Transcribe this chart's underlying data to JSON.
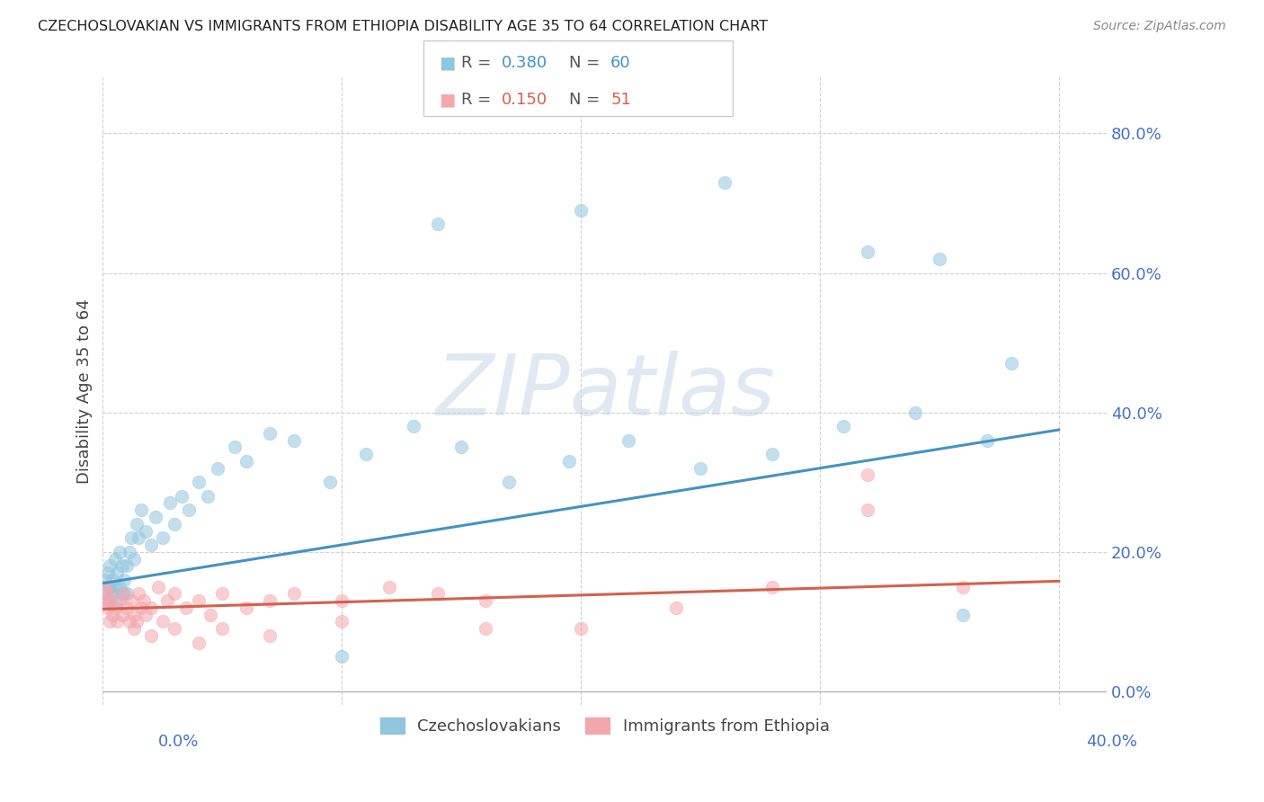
{
  "title": "CZECHOSLOVAKIAN VS IMMIGRANTS FROM ETHIOPIA DISABILITY AGE 35 TO 64 CORRELATION CHART",
  "source": "Source: ZipAtlas.com",
  "ylabel": "Disability Age 35 to 64",
  "legend_label1": "Czechoslovakians",
  "legend_label2": "Immigrants from Ethiopia",
  "R1": "0.380",
  "N1": "60",
  "R2": "0.150",
  "N2": "51",
  "color1": "#92c5de",
  "color2": "#f4a6ad",
  "line_color1": "#4393c3",
  "line_color2": "#d6604d",
  "background": "#ffffff",
  "watermark": "ZIPatlas",
  "xlim": [
    0.0,
    0.42
  ],
  "ylim": [
    -0.02,
    0.88
  ],
  "ytick_vals": [
    0.0,
    0.2,
    0.4,
    0.6,
    0.8
  ],
  "xtick_bottom_labels": [
    "0.0%",
    "40.0%"
  ],
  "xtick_bottom_vals": [
    0.0,
    0.4
  ],
  "ytick_right_labels": [
    "0.0%",
    "20.0%",
    "40.0%",
    "60.0%",
    "80.0%"
  ],
  "grid_ytick_vals": [
    0.0,
    0.2,
    0.4,
    0.6,
    0.8
  ],
  "grid_xtick_vals": [
    0.0,
    0.1,
    0.2,
    0.3,
    0.4
  ],
  "cz_x": [
    0.001,
    0.001,
    0.002,
    0.002,
    0.003,
    0.003,
    0.004,
    0.004,
    0.005,
    0.005,
    0.006,
    0.006,
    0.007,
    0.007,
    0.008,
    0.008,
    0.009,
    0.01,
    0.01,
    0.011,
    0.012,
    0.013,
    0.014,
    0.015,
    0.016,
    0.018,
    0.02,
    0.022,
    0.025,
    0.028,
    0.03,
    0.033,
    0.036,
    0.04,
    0.044,
    0.048,
    0.055,
    0.06,
    0.07,
    0.08,
    0.095,
    0.11,
    0.13,
    0.15,
    0.17,
    0.195,
    0.22,
    0.25,
    0.28,
    0.31,
    0.34,
    0.37,
    0.2,
    0.26,
    0.32,
    0.35,
    0.38,
    0.14,
    0.1,
    0.36
  ],
  "cz_y": [
    0.14,
    0.16,
    0.13,
    0.17,
    0.15,
    0.18,
    0.14,
    0.16,
    0.15,
    0.19,
    0.13,
    0.17,
    0.15,
    0.2,
    0.14,
    0.18,
    0.16,
    0.14,
    0.18,
    0.2,
    0.22,
    0.19,
    0.24,
    0.22,
    0.26,
    0.23,
    0.21,
    0.25,
    0.22,
    0.27,
    0.24,
    0.28,
    0.26,
    0.3,
    0.28,
    0.32,
    0.35,
    0.33,
    0.37,
    0.36,
    0.3,
    0.34,
    0.38,
    0.35,
    0.3,
    0.33,
    0.36,
    0.32,
    0.34,
    0.38,
    0.4,
    0.36,
    0.69,
    0.73,
    0.63,
    0.62,
    0.47,
    0.67,
    0.05,
    0.11
  ],
  "eth_x": [
    0.001,
    0.001,
    0.002,
    0.002,
    0.003,
    0.003,
    0.004,
    0.005,
    0.006,
    0.007,
    0.008,
    0.009,
    0.01,
    0.011,
    0.012,
    0.013,
    0.015,
    0.017,
    0.02,
    0.023,
    0.027,
    0.03,
    0.035,
    0.04,
    0.045,
    0.05,
    0.06,
    0.07,
    0.08,
    0.1,
    0.12,
    0.14,
    0.16,
    0.2,
    0.24,
    0.28,
    0.32,
    0.36,
    0.013,
    0.014,
    0.016,
    0.018,
    0.02,
    0.025,
    0.03,
    0.04,
    0.05,
    0.07,
    0.1,
    0.16,
    0.32
  ],
  "eth_y": [
    0.13,
    0.15,
    0.12,
    0.14,
    0.1,
    0.13,
    0.11,
    0.12,
    0.1,
    0.13,
    0.11,
    0.14,
    0.12,
    0.1,
    0.13,
    0.11,
    0.14,
    0.13,
    0.12,
    0.15,
    0.13,
    0.14,
    0.12,
    0.13,
    0.11,
    0.14,
    0.12,
    0.13,
    0.14,
    0.13,
    0.15,
    0.14,
    0.13,
    0.09,
    0.12,
    0.15,
    0.31,
    0.15,
    0.09,
    0.1,
    0.12,
    0.11,
    0.08,
    0.1,
    0.09,
    0.07,
    0.09,
    0.08,
    0.1,
    0.09,
    0.26
  ],
  "cz_line_x": [
    0.0,
    0.4
  ],
  "cz_line_y": [
    0.155,
    0.375
  ],
  "eth_line_x": [
    0.0,
    0.4
  ],
  "eth_line_y": [
    0.118,
    0.158
  ]
}
